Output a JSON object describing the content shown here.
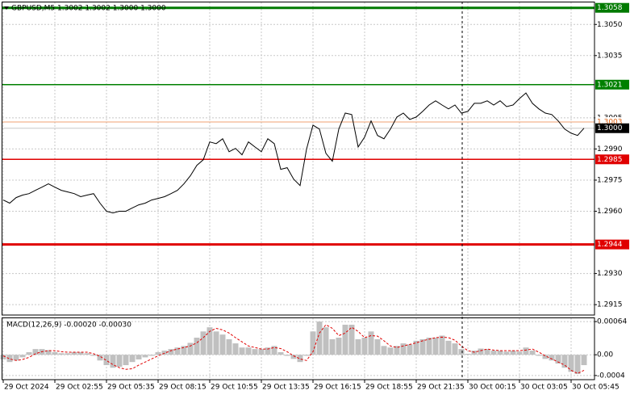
{
  "chart_data": [
    {
      "type": "line",
      "title": "GBPUSD,M5  1.3002 1.3002 1.3000 1.3000",
      "color": "#000000",
      "grid": true,
      "categories": [
        "29 Oct 2024",
        null,
        null,
        null,
        null,
        null,
        null,
        null,
        "29 Oct 02:55",
        null,
        null,
        null,
        null,
        null,
        null,
        null,
        "29 Oct 05:35",
        null,
        null,
        null,
        null,
        null,
        null,
        null,
        "29 Oct 08:15",
        null,
        null,
        null,
        null,
        null,
        null,
        null,
        "29 Oct 10:55",
        null,
        null,
        null,
        null,
        null,
        null,
        null,
        "29 Oct 13:35",
        null,
        null,
        null,
        null,
        null,
        null,
        null,
        "29 Oct 16:15",
        null,
        null,
        null,
        null,
        null,
        null,
        null,
        "29 Oct 18:55",
        null,
        null,
        null,
        null,
        null,
        null,
        null,
        "29 Oct 21:35",
        null,
        null,
        null,
        null,
        null,
        null,
        null,
        "30 Oct 00:15",
        null,
        null,
        null,
        null,
        null,
        null,
        null,
        "30 Oct 03:05",
        null,
        null,
        null,
        null,
        null,
        null,
        null,
        "30 Oct 05:45",
        null,
        null
      ],
      "values": [
        1.29654,
        1.29639,
        1.29666,
        1.29678,
        1.29685,
        1.29701,
        1.29716,
        1.29732,
        1.29716,
        1.29701,
        1.29693,
        1.29685,
        1.2967,
        1.29678,
        1.29685,
        1.29639,
        1.296,
        1.29592,
        1.296,
        1.296,
        1.29616,
        1.29631,
        1.29639,
        1.29654,
        1.29662,
        1.2967,
        1.29685,
        1.29701,
        1.29732,
        1.29771,
        1.29821,
        1.29848,
        1.29934,
        1.29926,
        1.29949,
        1.29887,
        1.29903,
        1.29872,
        1.29934,
        1.2991,
        1.29887,
        1.29949,
        1.29926,
        1.29802,
        1.2981,
        1.29755,
        1.29724,
        1.29899,
        1.30015,
        1.29996,
        1.29879,
        1.29841,
        1.29996,
        1.30073,
        1.30066,
        1.2991,
        1.29957,
        1.30035,
        1.29965,
        1.29949,
        1.29996,
        1.30054,
        1.30073,
        1.30042,
        1.30054,
        1.30081,
        1.30112,
        1.30132,
        1.30112,
        1.30093,
        1.30112,
        1.30073,
        1.30081,
        1.3012,
        1.3012,
        1.30132,
        1.30112,
        1.30132,
        1.30104,
        1.30112,
        1.30143,
        1.3017,
        1.3012,
        1.30093,
        1.30073,
        1.30066,
        1.30035,
        1.29996,
        1.29976,
        1.29965,
        1.3
      ],
      "ylim": [
        1.291,
        1.3061
      ],
      "yticks": [
        {
          "value": 1.305,
          "label": "1.3050"
        },
        1.3035,
        1.3005,
        {
          "value": 1.299,
          "label": "1.2990"
        },
        1.2975,
        {
          "value": 1.296,
          "label": "1.2960"
        },
        {
          "value": 1.293,
          "label": "1.2930"
        },
        1.2915
      ],
      "levels": [
        {
          "value": 1.3058,
          "color": "#007a00",
          "label_fill": "#007a00",
          "label_color": "#ffffff",
          "width": 3
        },
        {
          "value": 1.3021,
          "color": "#008000",
          "label_fill": "#008000",
          "label_color": "#ffffff",
          "width": 1.5
        },
        {
          "value": 1.3003,
          "color": "#f0a070",
          "label_fill": "#ffffff",
          "label_color": "#e06010",
          "width": 1
        },
        {
          "value": 1.3,
          "label": "1.3000",
          "color": "#c8c8c8",
          "label_fill": "#000000",
          "label_color": "#ffffff",
          "width": 1
        },
        {
          "value": 1.2985,
          "color": "#e00000",
          "label_fill": "#e00000",
          "label_color": "#ffffff",
          "width": 1.5
        },
        {
          "value": 1.2944,
          "color": "#e00000",
          "label_fill": "#e00000",
          "label_color": "#ffffff",
          "width": 3
        }
      ]
    },
    {
      "type": "macd",
      "title": "MACD(12,26,9) -0.00020 -0.00030",
      "grid": true,
      "ylim": [
        -0.00048,
        0.00072
      ],
      "yticks": [
        0.00064,
        {
          "value": 0,
          "label": "0.00"
        },
        -0.0004
      ],
      "series": [
        {
          "color": "#c0c0c0",
          "style": "bar",
          "values": [
            -9e-05,
            -0.00014,
            -0.00011,
            -5e-05,
            5e-05,
            0.00011,
            0.00011,
            9e-05,
            5e-05,
            3e-05,
            3e-05,
            5e-05,
            5e-05,
            3e-05,
            -2e-05,
            -0.00011,
            -0.0002,
            -0.00025,
            -0.00023,
            -0.0002,
            -0.00014,
            -9e-05,
            -5e-05,
            -2e-05,
            5e-05,
            8e-05,
            0.00011,
            0.00014,
            0.00017,
            0.00023,
            0.00033,
            0.00045,
            0.00053,
            0.00045,
            0.00039,
            0.0003,
            0.00022,
            0.00014,
            0.00014,
            0.00011,
            0.00011,
            0.00014,
            0.00017,
            5e-05,
            -2e-05,
            -8e-05,
            -0.00014,
            -2e-05,
            0.00045,
            0.00064,
            0.00053,
            0.0003,
            0.00033,
            0.00058,
            0.00058,
            0.0003,
            0.00033,
            0.00045,
            0.0003,
            0.00017,
            0.00014,
            0.00017,
            0.00022,
            0.0002,
            0.00027,
            0.0003,
            0.00033,
            0.00033,
            0.00037,
            0.00027,
            0.00022,
            0.00011,
            2e-05,
            8e-05,
            0.00012,
            0.00011,
            8e-05,
            8e-05,
            6e-05,
            8e-05,
            6e-05,
            0.00014,
            8e-05,
            -2e-05,
            -8e-05,
            -0.00011,
            -0.00017,
            -0.00025,
            -0.00033,
            -0.00037,
            -0.0002
          ]
        },
        {
          "color": "#e00000",
          "style": "dashed-line",
          "values": [
            -2e-05,
            -8e-05,
            -0.00011,
            -9e-05,
            -5e-05,
            2e-05,
            6e-05,
            8e-05,
            8e-05,
            6e-05,
            5e-05,
            5e-05,
            5e-05,
            5e-05,
            2e-05,
            -3e-05,
            -0.00011,
            -0.00019,
            -0.00025,
            -0.00028,
            -0.00027,
            -0.0002,
            -0.00014,
            -8e-05,
            -2e-05,
            3e-05,
            8e-05,
            0.00011,
            0.00014,
            0.00017,
            0.00023,
            0.00033,
            0.00045,
            0.00051,
            0.00048,
            0.00042,
            0.00033,
            0.00025,
            0.00017,
            0.00014,
            0.00011,
            0.00011,
            0.00014,
            0.00012,
            6e-05,
            -2e-05,
            -8e-05,
            -0.00011,
            6e-05,
            0.00042,
            0.00058,
            0.00051,
            0.00037,
            0.00042,
            0.00053,
            0.00045,
            0.00033,
            0.00037,
            0.00036,
            0.00027,
            0.00017,
            0.00014,
            0.00017,
            0.0002,
            0.00023,
            0.00027,
            0.0003,
            0.00033,
            0.00034,
            0.00033,
            0.00028,
            0.00017,
            8e-05,
            5e-05,
            8e-05,
            0.00011,
            9e-05,
            8e-05,
            8e-05,
            8e-05,
            8e-05,
            9e-05,
            0.00011,
            5e-05,
            -2e-05,
            -8e-05,
            -0.00014,
            -0.0002,
            -0.0003,
            -0.00036,
            -0.0003
          ]
        }
      ]
    }
  ]
}
